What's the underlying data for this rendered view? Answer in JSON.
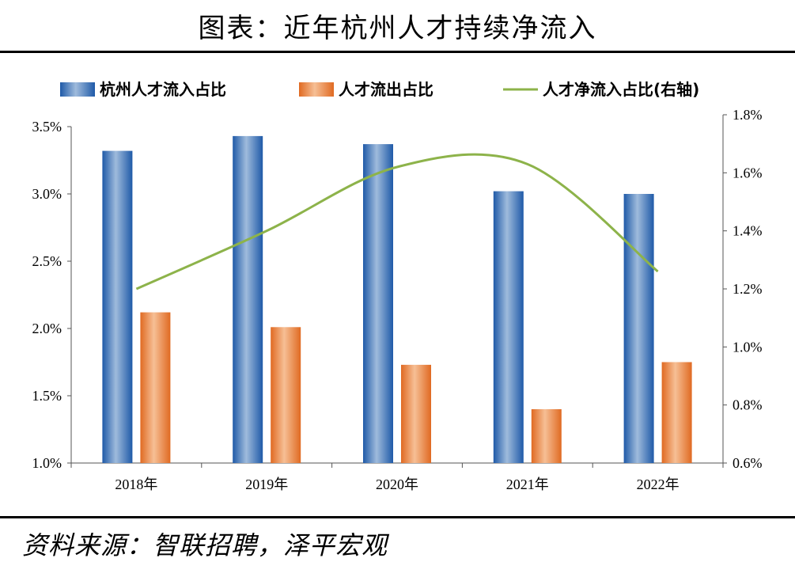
{
  "title": "图表：近年杭州人才持续净流入",
  "source": "资料来源：智联招聘，泽平宏观",
  "colors": {
    "inflow": "#2f6fbf",
    "outflow": "#e8742a",
    "net": "#8db34a"
  },
  "chart_data": {
    "type": "bar",
    "categories": [
      "2018年",
      "2019年",
      "2020年",
      "2021年",
      "2022年"
    ],
    "series": [
      {
        "name": "杭州人才流入占比",
        "axis": "left",
        "kind": "bar",
        "values": [
          3.32,
          3.43,
          3.37,
          3.02,
          3.0
        ]
      },
      {
        "name": "人才流出占比",
        "axis": "left",
        "kind": "bar",
        "values": [
          2.12,
          2.01,
          1.73,
          1.4,
          1.75
        ]
      },
      {
        "name": "人才净流入占比(右轴)",
        "axis": "right",
        "kind": "line",
        "values": [
          1.2,
          1.4,
          1.62,
          1.63,
          1.26
        ]
      }
    ],
    "left_axis": {
      "min": 1.0,
      "max": 3.5,
      "step": 0.5,
      "ticks": [
        "1.0%",
        "1.5%",
        "2.0%",
        "2.5%",
        "3.0%",
        "3.5%"
      ]
    },
    "right_axis": {
      "min": 0.6,
      "max": 1.8,
      "step": 0.2,
      "ticks": [
        "0.6%",
        "0.8%",
        "1.0%",
        "1.2%",
        "1.4%",
        "1.6%",
        "1.8%"
      ]
    },
    "legend_position": "top"
  }
}
